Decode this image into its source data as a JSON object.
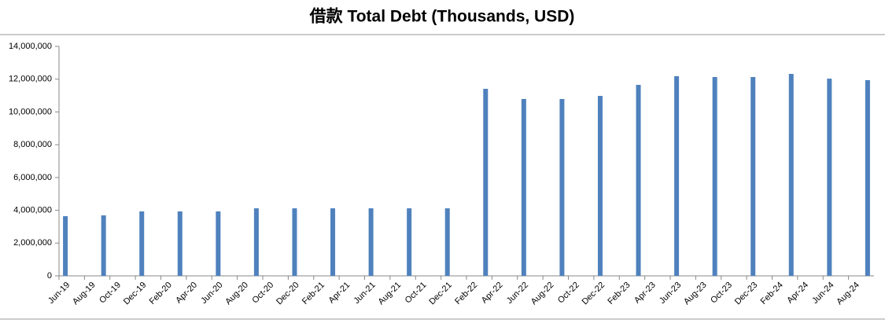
{
  "chart_data": {
    "type": "bar",
    "title": "借款 Total Debt (Thousands, USD)",
    "categories": [
      "Jun-19",
      null,
      "Aug-19",
      null,
      "Oct-19",
      null,
      "Dec-19",
      null,
      "Feb-20",
      null,
      "Apr-20",
      null,
      "Jun-20",
      null,
      "Aug-20",
      null,
      "Oct-20",
      null,
      "Dec-20",
      null,
      "Feb-21",
      null,
      "Apr-21",
      null,
      "Jun-21",
      null,
      "Aug-21",
      null,
      "Oct-21",
      null,
      "Dec-21",
      null,
      "Feb-22",
      null,
      "Apr-22",
      null,
      "Jun-22",
      null,
      "Aug-22",
      null,
      "Oct-22",
      null,
      "Dec-22",
      null,
      "Feb-23",
      null,
      "Apr-23",
      null,
      "Jun-23",
      null,
      "Aug-23",
      null,
      "Oct-23",
      null,
      "Dec-23",
      null,
      "Feb-24",
      null,
      "Apr-24",
      null,
      "Jun-24",
      null,
      "Aug-24",
      null
    ],
    "values": [
      3640000,
      null,
      null,
      3690000,
      null,
      null,
      3930000,
      null,
      null,
      3930000,
      null,
      null,
      3930000,
      null,
      null,
      4120000,
      null,
      null,
      4120000,
      null,
      null,
      4120000,
      null,
      null,
      4120000,
      null,
      null,
      4120000,
      null,
      null,
      4120000,
      null,
      null,
      11410000,
      null,
      null,
      10790000,
      null,
      null,
      10790000,
      null,
      null,
      10980000,
      null,
      null,
      11650000,
      null,
      null,
      12180000,
      null,
      null,
      12130000,
      null,
      null,
      12130000,
      null,
      null,
      12320000,
      null,
      null,
      12030000,
      null,
      null,
      11940000
    ],
    "color": "#4f81bd",
    "ylim": [
      0,
      14000000
    ],
    "yticks": [
      0,
      {
        "value": 2000000,
        "label": "2,000,000"
      },
      {
        "value": 4000000,
        "label": "4,000,000"
      },
      {
        "value": 6000000,
        "label": "6,000,000"
      },
      {
        "value": 8000000,
        "label": "8,000,000"
      },
      {
        "value": 10000000,
        "label": "10,000,000"
      },
      {
        "value": 12000000,
        "label": "12,000,000"
      },
      {
        "value": 14000000,
        "label": "14,000,000"
      }
    ],
    "grid": false
  }
}
